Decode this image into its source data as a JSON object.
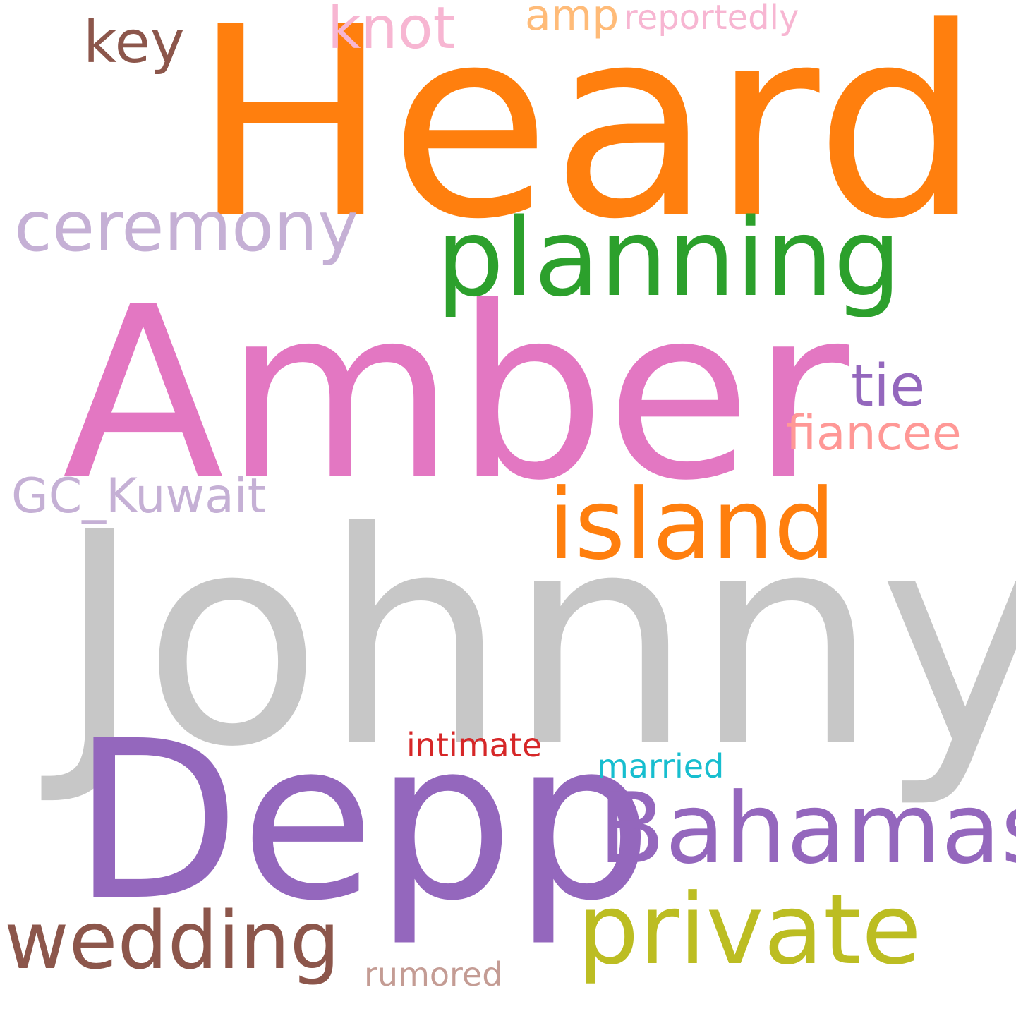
{
  "wordcloud": {
    "words": [
      {
        "key": "heard",
        "text": "Heard",
        "color": "#ff7f0e"
      },
      {
        "key": "amber",
        "text": "Amber",
        "color": "#e377c2"
      },
      {
        "key": "johnny",
        "text": "Johnny",
        "color": "#c7c7c7"
      },
      {
        "key": "depp",
        "text": "Depp",
        "color": "#9467bd"
      },
      {
        "key": "planning",
        "text": "planning",
        "color": "#2ca02c"
      },
      {
        "key": "ceremony",
        "text": "ceremony",
        "color": "#c5b0d5"
      },
      {
        "key": "island",
        "text": "island",
        "color": "#ff7f0e"
      },
      {
        "key": "bahamas",
        "text": "Bahamas",
        "color": "#9467bd"
      },
      {
        "key": "private",
        "text": "private",
        "color": "#bcbd22"
      },
      {
        "key": "wedding",
        "text": "wedding",
        "color": "#8c564b"
      },
      {
        "key": "key",
        "text": "key",
        "color": "#8c564b"
      },
      {
        "key": "knot",
        "text": "knot",
        "color": "#f7b6d2"
      },
      {
        "key": "amp",
        "text": "amp",
        "color": "#ffbb78"
      },
      {
        "key": "reportedly",
        "text": "reportedly",
        "color": "#f7b6d2"
      },
      {
        "key": "tie",
        "text": "tie",
        "color": "#9467bd"
      },
      {
        "key": "fiancee",
        "text": "fiancee",
        "color": "#ff9896"
      },
      {
        "key": "gckuwait",
        "text": "GC_Kuwait",
        "color": "#c5b0d5"
      },
      {
        "key": "intimate",
        "text": "intimate",
        "color": "#d62728"
      },
      {
        "key": "married",
        "text": "married",
        "color": "#17becf"
      },
      {
        "key": "rumored",
        "text": "rumored",
        "color": "#c49c94"
      }
    ]
  }
}
